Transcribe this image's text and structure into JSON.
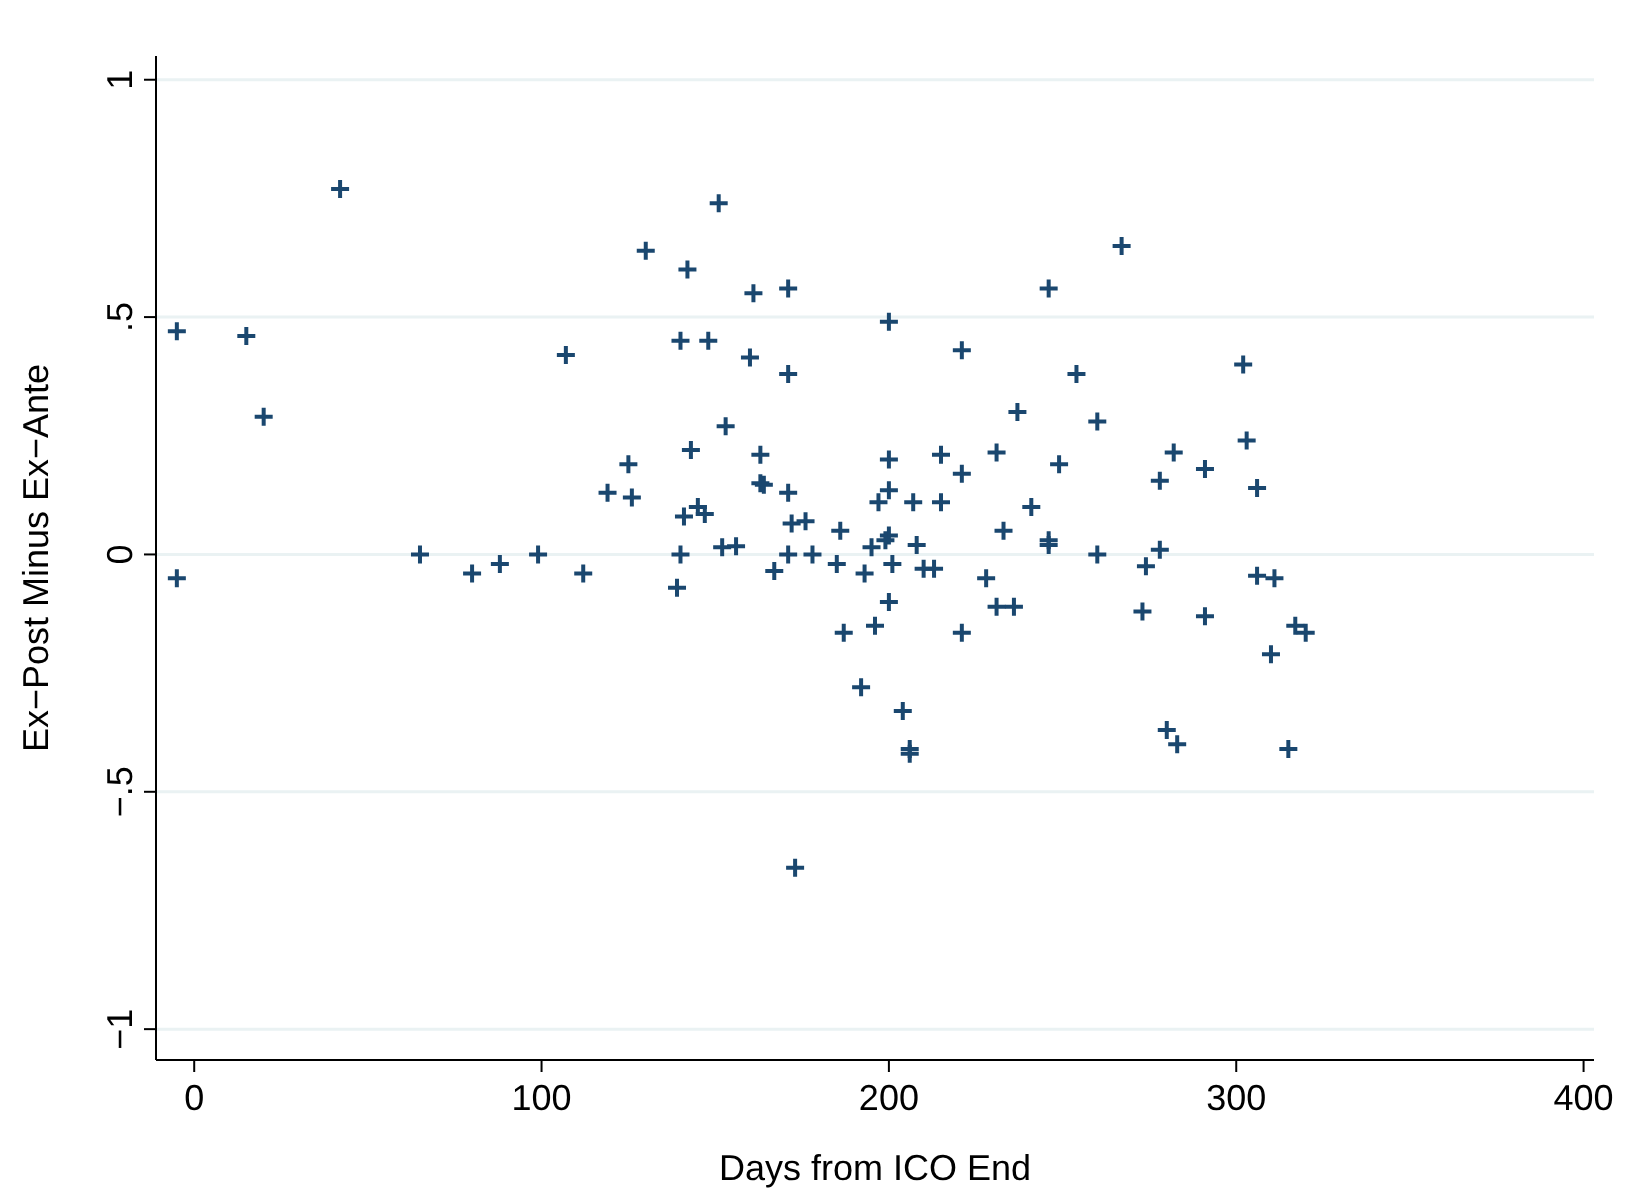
{
  "chart_data": {
    "type": "scatter",
    "xlabel": "Days from ICO End",
    "ylabel": "Ex−Post Minus Ex−Ante",
    "xlim": [
      -11,
      403
    ],
    "xticks": [
      0,
      100,
      200,
      300,
      400
    ],
    "ylim": [
      -1.065,
      1.05
    ],
    "yticks": [
      {
        "value": -1,
        "label": "−1"
      },
      {
        "value": -0.5,
        "label": "−.5"
      },
      0,
      {
        "value": 0.5,
        "label": ".5"
      },
      1
    ],
    "grid": "y",
    "marker": "cross",
    "series": [
      {
        "color": "#1a476f",
        "x": [
          -5,
          -5,
          15,
          20,
          42,
          65,
          80,
          88,
          99,
          107,
          112,
          119,
          125,
          126,
          130,
          151,
          142,
          161,
          171,
          200,
          246,
          140,
          148,
          160,
          171,
          221,
          254,
          237,
          260,
          153,
          143,
          163,
          200,
          215,
          231,
          249,
          221,
          163,
          164,
          171,
          200,
          197,
          207,
          215,
          241,
          141,
          145,
          147,
          172,
          176,
          186,
          233,
          200,
          199,
          195,
          208,
          246,
          246,
          152,
          156,
          140,
          171,
          178,
          260,
          167,
          185,
          193,
          201,
          210,
          213,
          139,
          228,
          200,
          231,
          236,
          187,
          196,
          221,
          192,
          204,
          206,
          206,
          173,
          267,
          302,
          282,
          303,
          291,
          278,
          306,
          278,
          274,
          306,
          311,
          273,
          291,
          310,
          317,
          320,
          280,
          283,
          315
        ],
        "values": [
          0.47,
          -0.05,
          0.46,
          0.29,
          0.77,
          0,
          -0.04,
          -0.02,
          0,
          0.42,
          -0.04,
          0.13,
          0.19,
          0.12,
          0.64,
          0.74,
          0.6,
          0.55,
          0.56,
          0.49,
          0.56,
          0.45,
          0.45,
          0.415,
          0.38,
          0.43,
          0.38,
          0.3,
          0.28,
          0.27,
          0.22,
          0.21,
          0.2,
          0.21,
          0.215,
          0.19,
          0.17,
          0.15,
          0.147,
          0.13,
          0.135,
          0.11,
          0.11,
          0.11,
          0.1,
          0.08,
          0.1,
          0.085,
          0.065,
          0.07,
          0.05,
          0.05,
          0.04,
          0.03,
          0.015,
          0.02,
          0.03,
          0.02,
          0.015,
          0.017,
          0,
          0,
          0,
          0,
          -0.035,
          -0.02,
          -0.04,
          -0.02,
          -0.03,
          -0.03,
          -0.07,
          -0.05,
          -0.1,
          -0.11,
          -0.11,
          -0.165,
          -0.15,
          -0.165,
          -0.28,
          -0.33,
          -0.41,
          -0.42,
          -0.66,
          0.65,
          0.4,
          0.215,
          0.24,
          0.18,
          0.155,
          0.14,
          0.01,
          -0.025,
          -0.045,
          -0.05,
          -0.12,
          -0.13,
          -0.21,
          -0.15,
          -0.165,
          -0.37,
          -0.4,
          -0.41
        ]
      }
    ]
  }
}
